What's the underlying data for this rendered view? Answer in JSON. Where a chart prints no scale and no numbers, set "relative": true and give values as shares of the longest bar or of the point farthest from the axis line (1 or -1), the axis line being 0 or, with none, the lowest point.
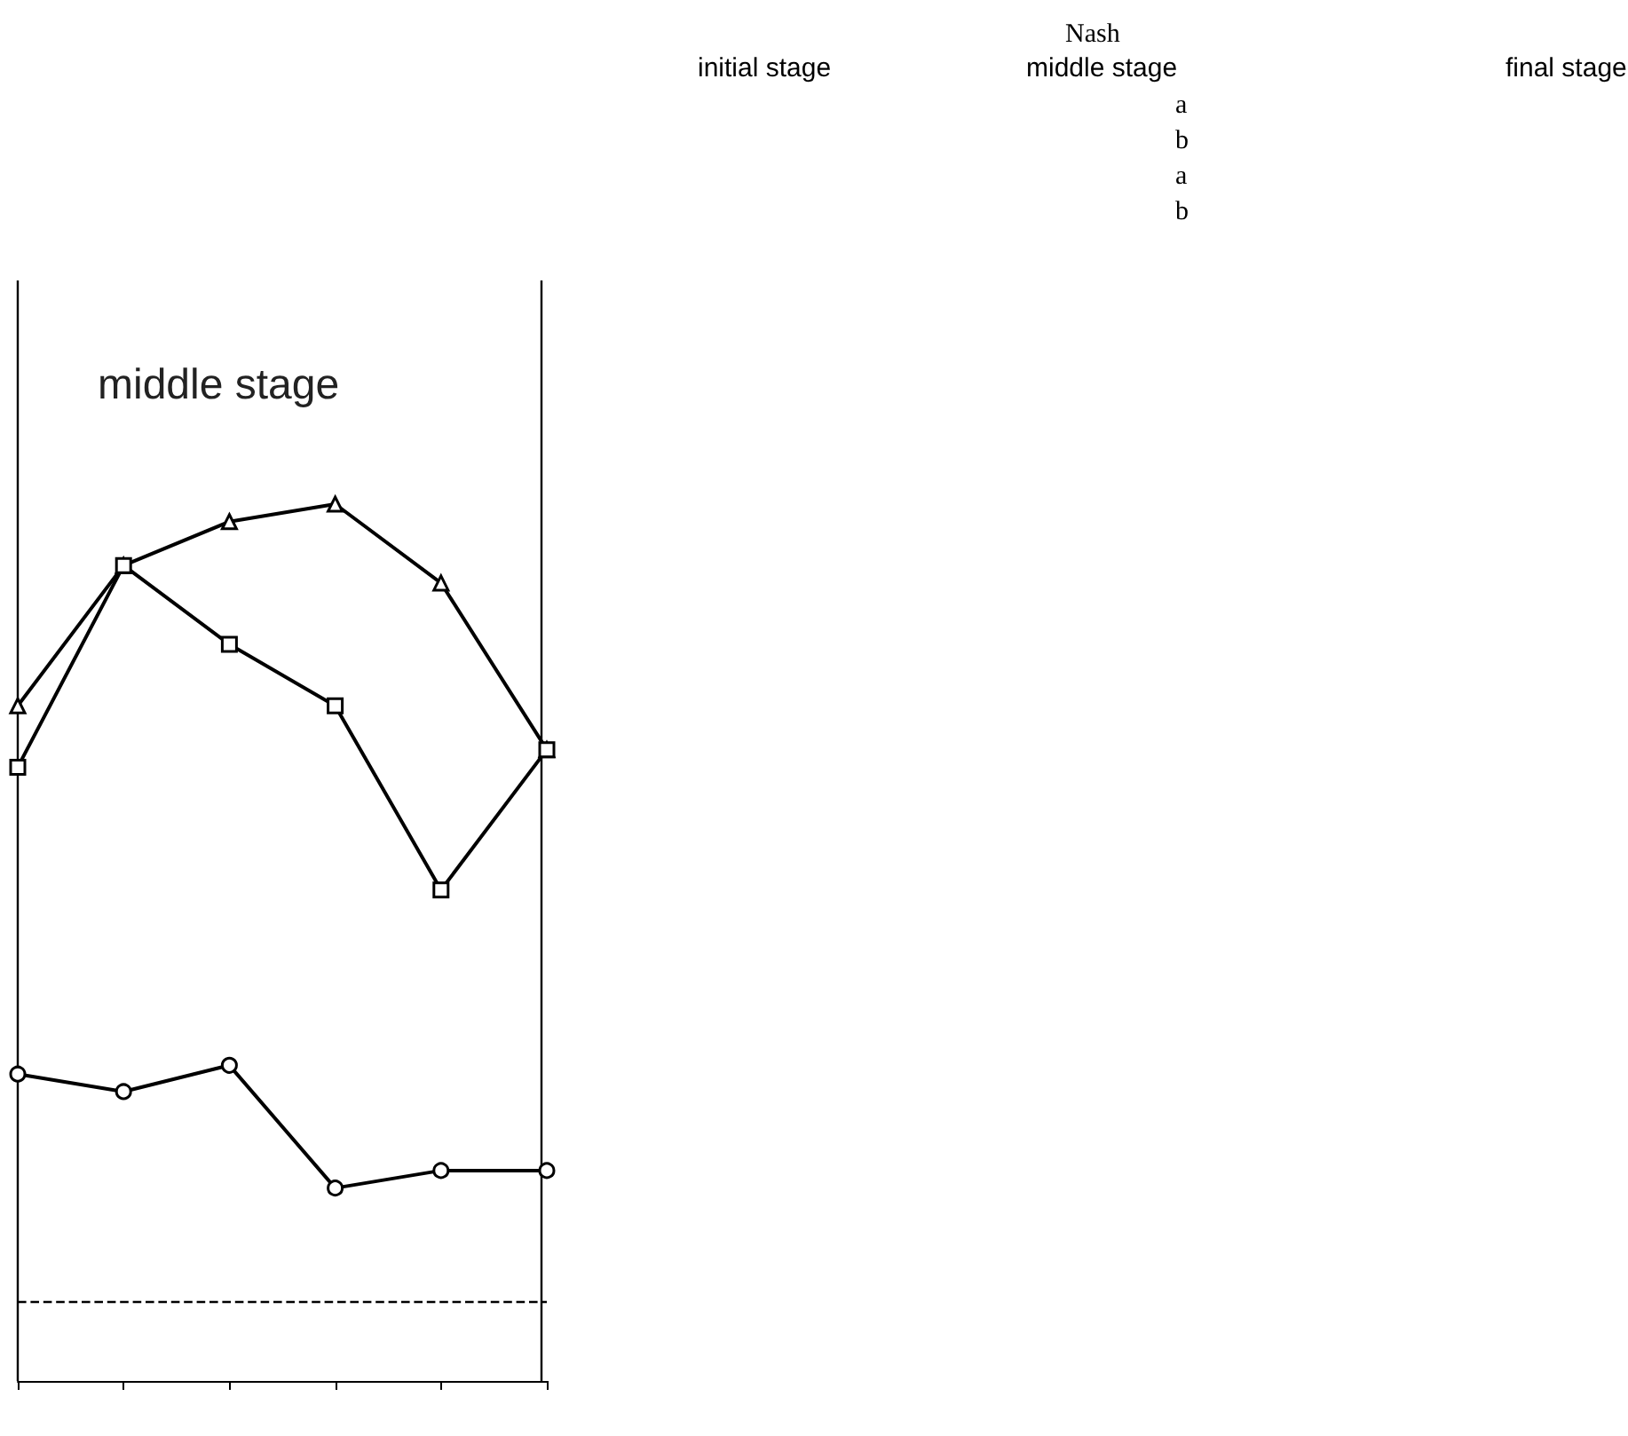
{
  "chart_data": {
    "type": "line",
    "title": "middle stage",
    "relative": true,
    "categories": [
      null,
      null,
      null,
      null,
      null,
      null
    ],
    "series": [
      {
        "color": "#000000",
        "marker": "triangle",
        "values": [
          0.77,
          0.93,
          0.98,
          1,
          0.91,
          0.72
        ]
      },
      {
        "color": "#000000",
        "marker": "square",
        "values": [
          0.7,
          0.93,
          0.84,
          0.77,
          0.56,
          0.72
        ]
      },
      {
        "color": "#000000",
        "marker": "circle",
        "values": [
          0.35,
          0.33,
          0.36,
          0.22,
          0.24,
          0.24
        ]
      }
    ],
    "ref_lines": [
      {
        "axis": "y",
        "value": 0.09,
        "color": "#000000",
        "line_style": "dashed"
      }
    ],
    "annotations": [
      "Nash",
      "initial stage",
      "middle stage",
      "final stage",
      "a",
      "b",
      "a",
      "b"
    ],
    "grid": false,
    "line_style": "solid"
  }
}
